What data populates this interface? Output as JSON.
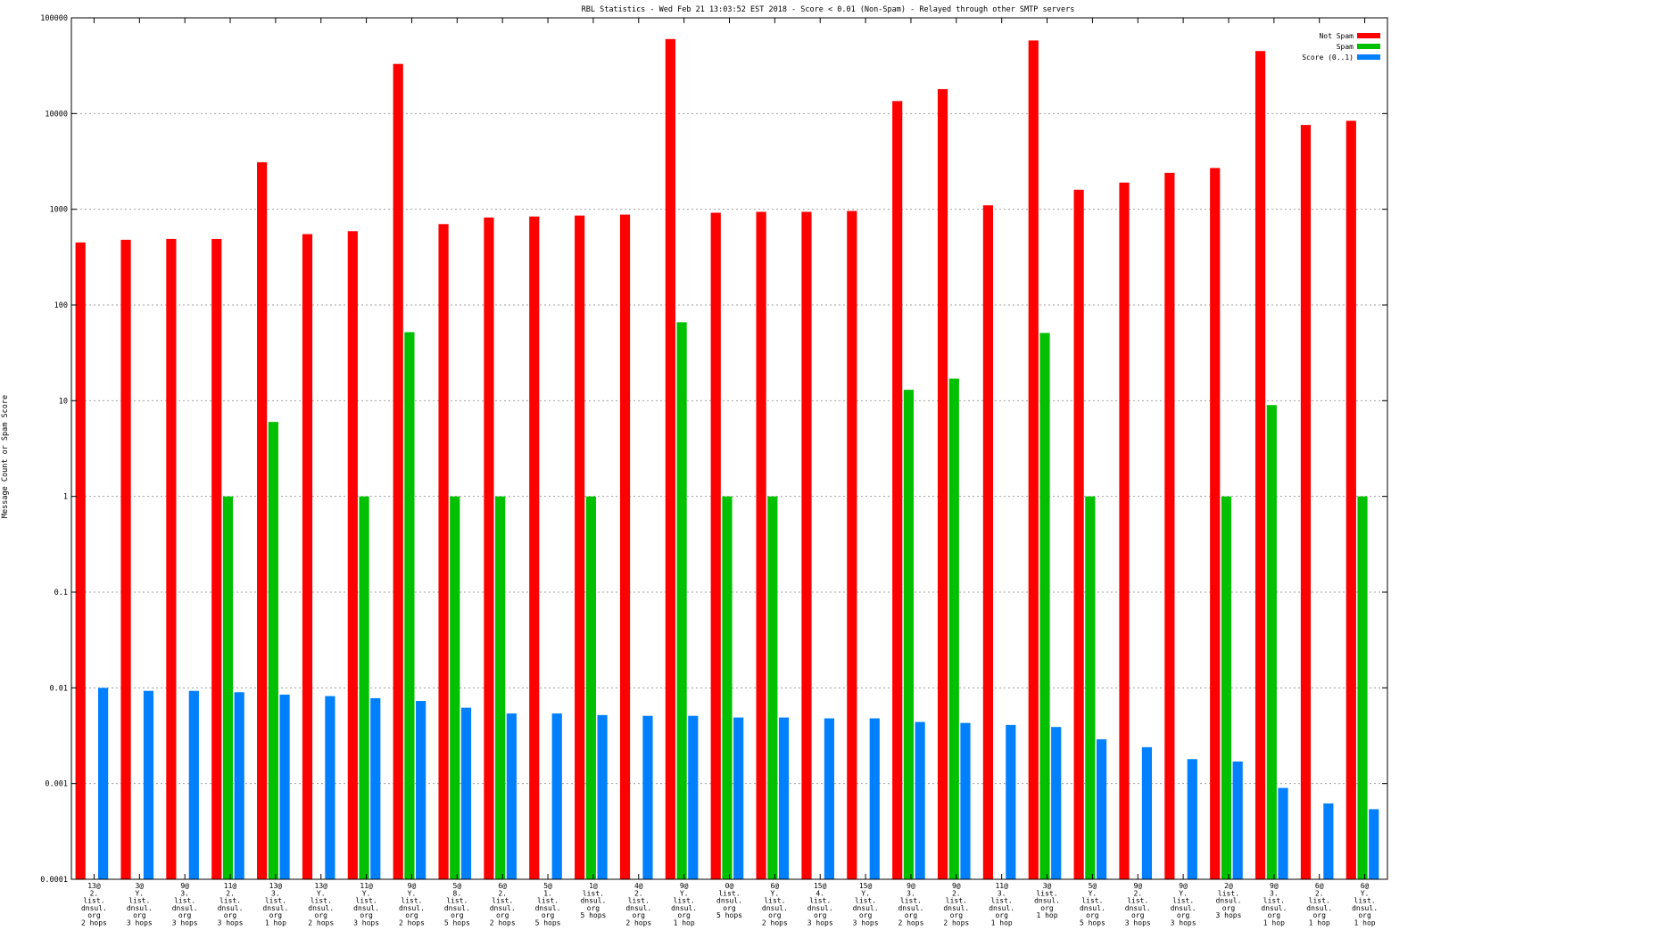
{
  "chart_data": {
    "type": "bar",
    "title": "RBL Statistics - Wed Feb 21 13:03:52 EST 2018 - Score < 0.01 (Non-Spam) - Relayed through other SMTP servers",
    "xlabel": "",
    "ylabel": "Message Count or Spam Score",
    "yscale": "log",
    "ylim": [
      0.0001,
      100000
    ],
    "yticks": [
      "0.0001",
      "0.001",
      "0.01",
      "0.1",
      "1",
      "10",
      "100",
      "1000",
      "10000",
      "100000"
    ],
    "grid": true,
    "legend_position": "top-right",
    "categories": [
      [
        "13@",
        "2.",
        "list.",
        "dnsul.",
        "org",
        "2 hops"
      ],
      [
        "3@",
        "Y.",
        "list.",
        "dnsul.",
        "org",
        "3 hops"
      ],
      [
        "9@",
        "3.",
        "list.",
        "dnsul.",
        "org",
        "3 hops"
      ],
      [
        "11@",
        "2.",
        "list.",
        "dnsul.",
        "org",
        "3 hops"
      ],
      [
        "13@",
        "3.",
        "list.",
        "dnsul.",
        "org",
        "1 hop"
      ],
      [
        "13@",
        "Y.",
        "list.",
        "dnsul.",
        "org",
        "2 hops"
      ],
      [
        "11@",
        "Y.",
        "list.",
        "dnsul.",
        "org",
        "3 hops"
      ],
      [
        "9@",
        "Y.",
        "list.",
        "dnsul.",
        "org",
        "2 hops"
      ],
      [
        "5@",
        "8.",
        "list.",
        "dnsul.",
        "org",
        "5 hops"
      ],
      [
        "6@",
        "2.",
        "list.",
        "dnsul.",
        "org",
        "2 hops"
      ],
      [
        "5@",
        "1.",
        "list.",
        "dnsul.",
        "org",
        "5 hops"
      ],
      [
        "1@",
        "list.",
        "dnsul.",
        "org",
        "5 hops"
      ],
      [
        "4@",
        "2.",
        "list.",
        "dnsul.",
        "org",
        "2 hops"
      ],
      [
        "9@",
        "Y.",
        "list.",
        "dnsul.",
        "org",
        "1 hop"
      ],
      [
        "0@",
        "list.",
        "dnsul.",
        "org",
        "5 hops"
      ],
      [
        "6@",
        "Y.",
        "list.",
        "dnsul.",
        "org",
        "2 hops"
      ],
      [
        "15@",
        "4.",
        "list.",
        "dnsul.",
        "org",
        "3 hops"
      ],
      [
        "15@",
        "Y.",
        "list.",
        "dnsul.",
        "org",
        "3 hops"
      ],
      [
        "9@",
        "3.",
        "list.",
        "dnsul.",
        "org",
        "2 hops"
      ],
      [
        "9@",
        "2.",
        "list.",
        "dnsul.",
        "org",
        "2 hops"
      ],
      [
        "11@",
        "3.",
        "list.",
        "dnsul.",
        "org",
        "1 hop"
      ],
      [
        "3@",
        "list.",
        "dnsul.",
        "org",
        "1 hop"
      ],
      [
        "5@",
        "Y.",
        "list.",
        "dnsul.",
        "org",
        "5 hops"
      ],
      [
        "9@",
        "2.",
        "list.",
        "dnsul.",
        "org",
        "3 hops"
      ],
      [
        "9@",
        "Y.",
        "list.",
        "dnsul.",
        "org",
        "3 hops"
      ],
      [
        "2@",
        "list.",
        "dnsul.",
        "org",
        "3 hops"
      ],
      [
        "9@",
        "3.",
        "list.",
        "dnsul.",
        "org",
        "1 hop"
      ],
      [
        "6@",
        "2.",
        "list.",
        "dnsul.",
        "org",
        "1 hop"
      ],
      [
        "6@",
        "Y.",
        "list.",
        "dnsul.",
        "org",
        "1 hop"
      ]
    ],
    "series": [
      {
        "name": "Not Spam",
        "color": "#ff0000",
        "values": [
          450,
          480,
          490,
          490,
          3100,
          550,
          590,
          33000,
          700,
          820,
          840,
          860,
          880,
          60000,
          920,
          940,
          940,
          960,
          13500,
          18000,
          1100,
          58000,
          1600,
          1900,
          2400,
          2700,
          45000,
          7600,
          8400
        ]
      },
      {
        "name": "Spam",
        "color": "#00c000",
        "values": [
          null,
          null,
          null,
          1,
          6,
          null,
          1,
          52,
          1,
          1,
          null,
          1,
          null,
          66,
          1,
          1,
          null,
          null,
          13,
          17,
          null,
          51,
          1,
          null,
          null,
          1,
          9,
          null,
          1
        ]
      },
      {
        "name": "Score (0..1)",
        "color": "#0080ff",
        "values": [
          0.01,
          0.0093,
          0.0093,
          0.009,
          0.0085,
          0.0082,
          0.0078,
          0.0073,
          0.0062,
          0.0054,
          0.0054,
          0.0052,
          0.0051,
          0.0051,
          0.0049,
          0.0049,
          0.0048,
          0.0048,
          0.0044,
          0.0043,
          0.0041,
          0.0039,
          0.0029,
          0.0024,
          0.0018,
          0.0017,
          0.0009,
          0.00062,
          0.00054
        ]
      }
    ]
  }
}
